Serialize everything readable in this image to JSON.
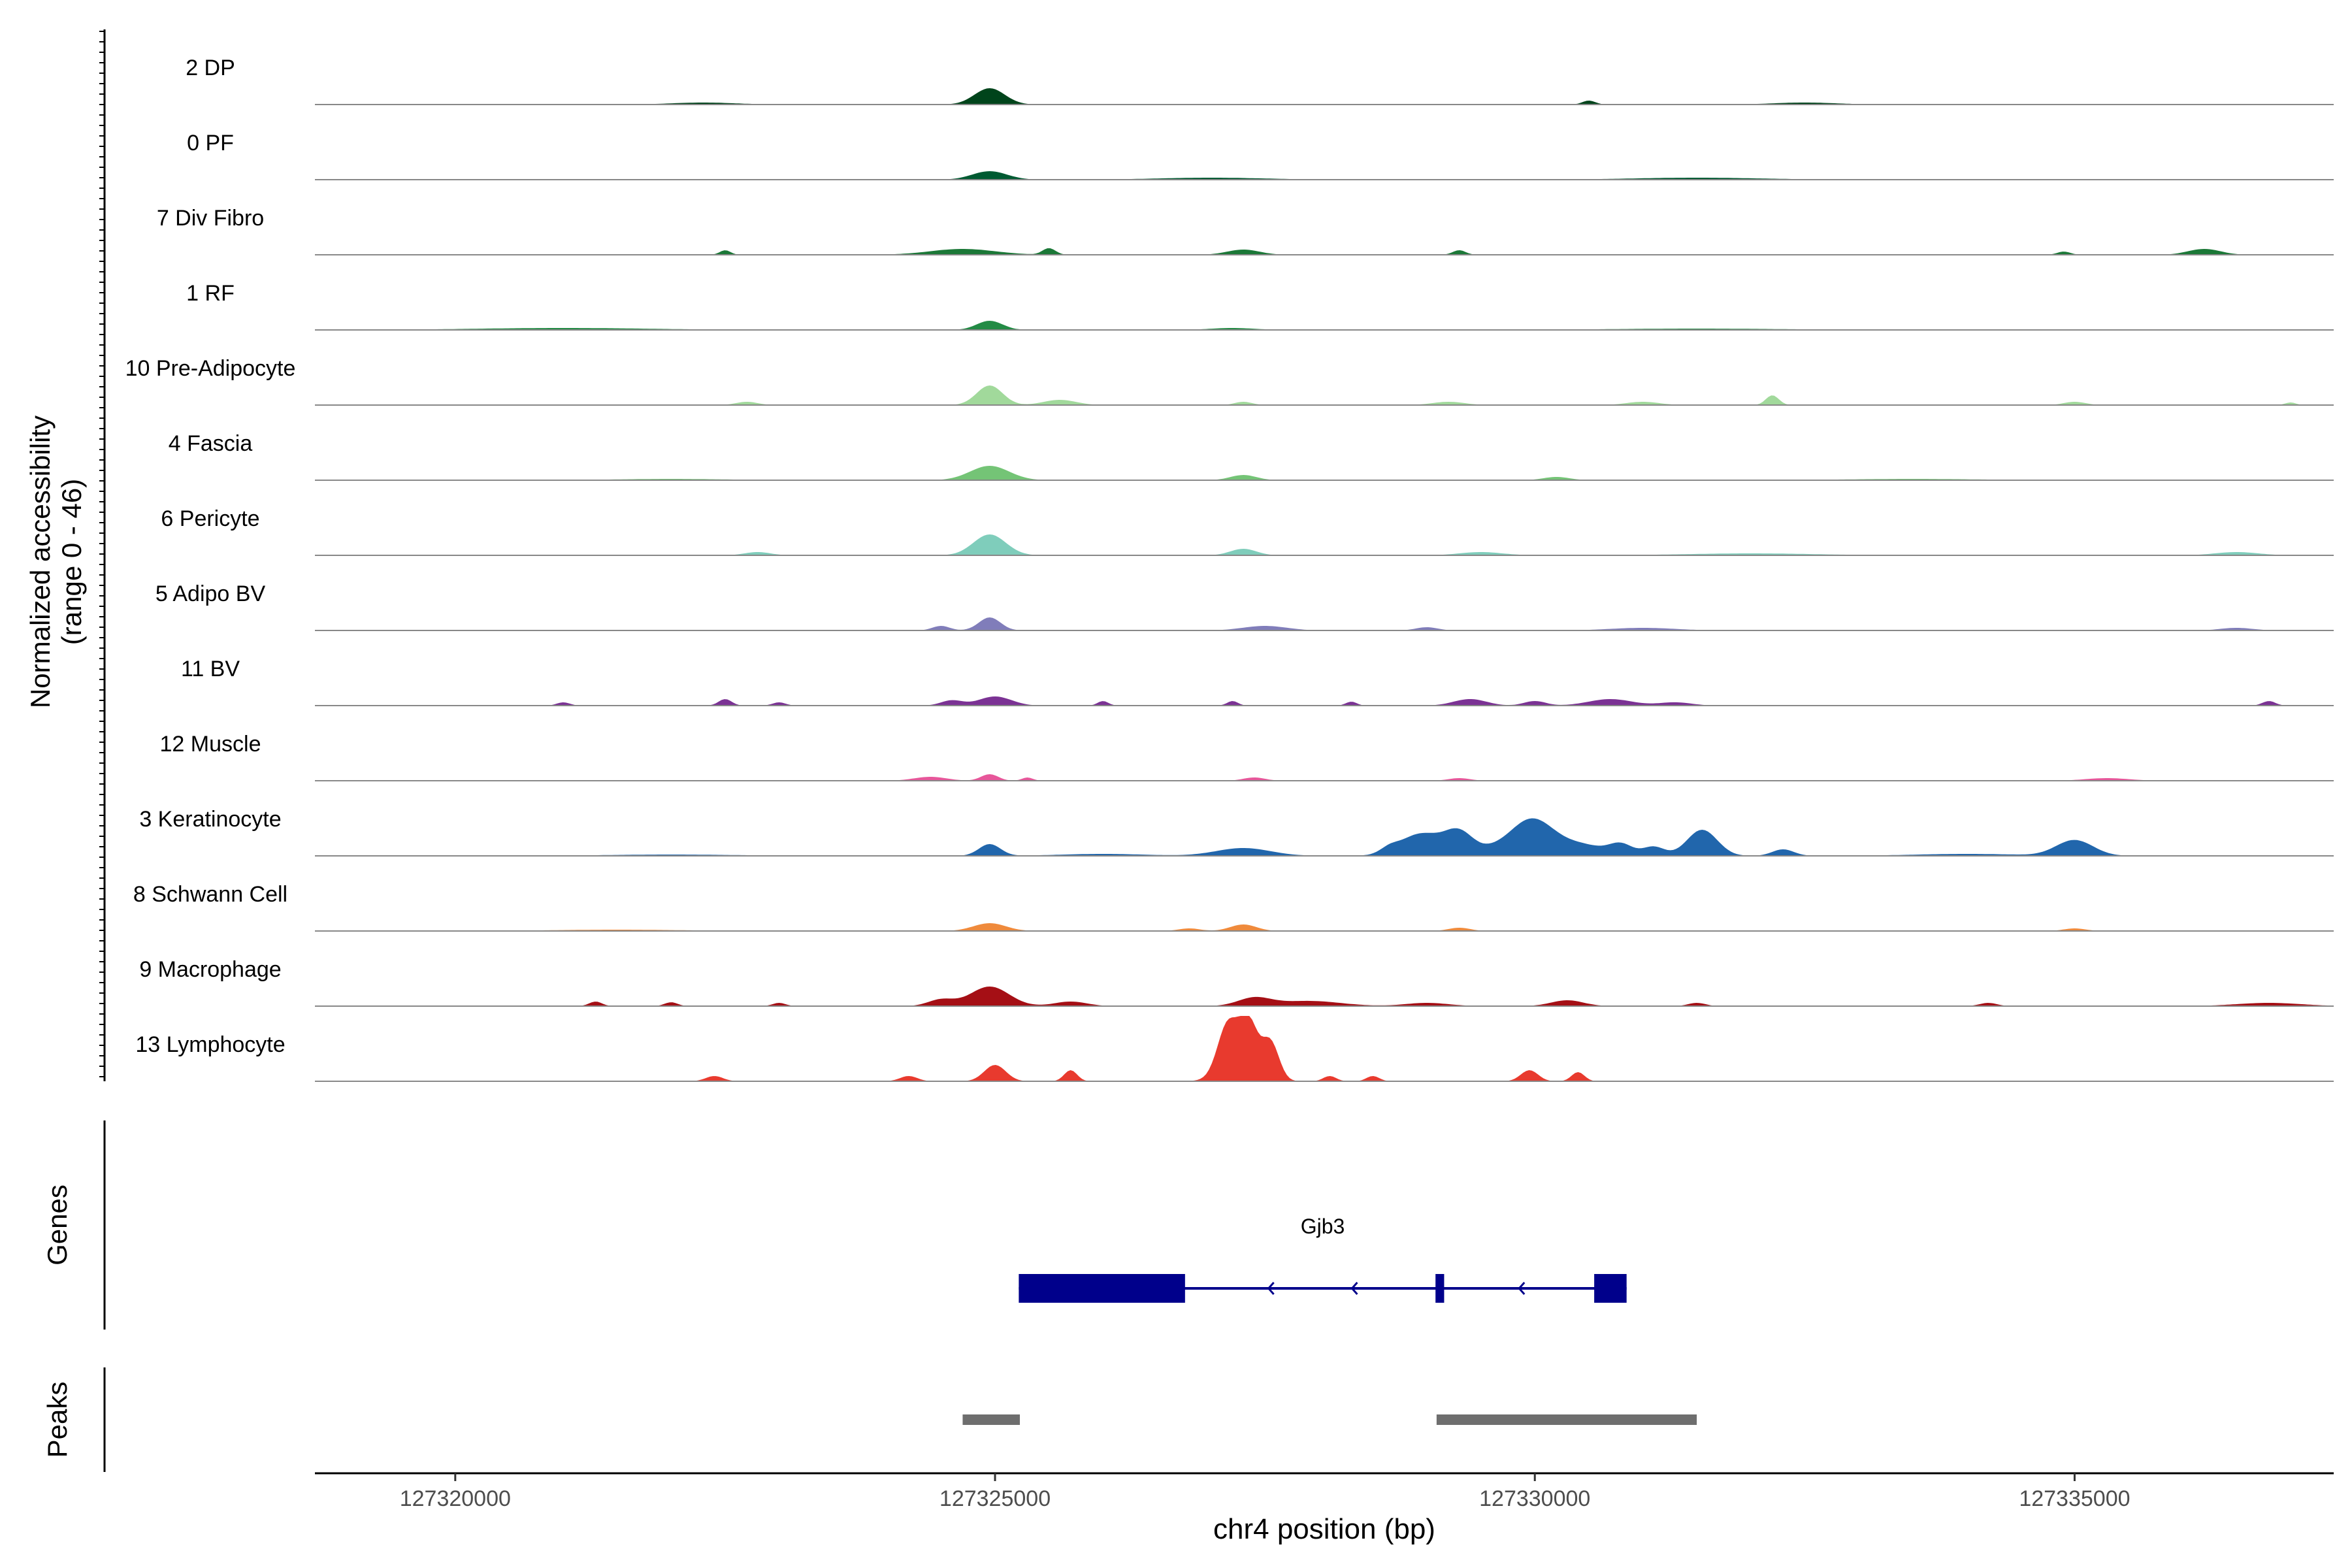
{
  "chart_data": {
    "type": "area",
    "ylabel_lines": [
      "Normalized accessibility",
      "(range 0 - 46)"
    ],
    "ylim": [
      0,
      46
    ],
    "xlabel": "chr4 position (bp)",
    "xlim": [
      127318700,
      127337400
    ],
    "xticks": [
      127320000,
      127325000,
      127330000,
      127335000
    ],
    "xtick_labels": [
      "127320000",
      "127325000",
      "127330000",
      "127335000"
    ],
    "grid": false,
    "tracks": [
      {
        "name": "2 DP",
        "color": "#00441b",
        "peaks": [
          [
            127324950,
            0.25,
            140
          ],
          [
            127330500,
            0.06,
            60
          ],
          [
            127322300,
            0.03,
            300
          ],
          [
            127332500,
            0.03,
            300
          ]
        ]
      },
      {
        "name": "0 PF",
        "color": "#005a32",
        "peaks": [
          [
            127324950,
            0.13,
            160
          ],
          [
            127327000,
            0.03,
            500
          ],
          [
            127331500,
            0.03,
            600
          ]
        ]
      },
      {
        "name": "7 Div Fibro",
        "color": "#1b7837",
        "peaks": [
          [
            127322500,
            0.07,
            50
          ],
          [
            127324700,
            0.09,
            300
          ],
          [
            127325500,
            0.1,
            60
          ],
          [
            127327300,
            0.08,
            150
          ],
          [
            127329300,
            0.07,
            60
          ],
          [
            127336200,
            0.09,
            150
          ],
          [
            127334900,
            0.05,
            60
          ]
        ]
      },
      {
        "name": "1 RF",
        "color": "#238b45",
        "peaks": [
          [
            127324950,
            0.14,
            120
          ],
          [
            127327200,
            0.03,
            200
          ],
          [
            127321000,
            0.03,
            800
          ],
          [
            127331500,
            0.02,
            800
          ]
        ]
      },
      {
        "name": "10 Pre-Adipocyte",
        "color": "#a1d99b",
        "peaks": [
          [
            127324950,
            0.3,
            120
          ],
          [
            127325600,
            0.08,
            150
          ],
          [
            127332200,
            0.15,
            60
          ],
          [
            127322700,
            0.05,
            100
          ],
          [
            127327300,
            0.05,
            80
          ],
          [
            127329200,
            0.05,
            150
          ],
          [
            127331000,
            0.05,
            150
          ],
          [
            127335000,
            0.05,
            100
          ],
          [
            127337000,
            0.04,
            50
          ]
        ]
      },
      {
        "name": "4 Fascia",
        "color": "#74c476",
        "peaks": [
          [
            127324950,
            0.22,
            180
          ],
          [
            127327300,
            0.08,
            120
          ],
          [
            127330200,
            0.05,
            120
          ],
          [
            127322000,
            0.02,
            500
          ],
          [
            127333500,
            0.02,
            600
          ]
        ]
      },
      {
        "name": "6 Pericyte",
        "color": "#7fcdbb",
        "peaks": [
          [
            127324950,
            0.32,
            150
          ],
          [
            127327300,
            0.1,
            120
          ],
          [
            127322800,
            0.05,
            120
          ],
          [
            127329500,
            0.05,
            200
          ],
          [
            127336500,
            0.05,
            200
          ],
          [
            127332000,
            0.03,
            600
          ]
        ]
      },
      {
        "name": "5 Adipo BV",
        "color": "#807dba",
        "peaks": [
          [
            127324950,
            0.2,
            100
          ],
          [
            127324500,
            0.07,
            80
          ],
          [
            127327500,
            0.07,
            200
          ],
          [
            127329000,
            0.05,
            100
          ],
          [
            127331000,
            0.04,
            300
          ],
          [
            127336500,
            0.04,
            150
          ]
        ]
      },
      {
        "name": "11 BV",
        "color": "#7b3294",
        "peaks": [
          [
            127325000,
            0.14,
            150
          ],
          [
            127324600,
            0.08,
            100
          ],
          [
            127322500,
            0.1,
            60
          ],
          [
            127326000,
            0.07,
            50
          ],
          [
            127321000,
            0.05,
            60
          ],
          [
            127323000,
            0.05,
            60
          ],
          [
            127327200,
            0.07,
            50
          ],
          [
            127328300,
            0.06,
            50
          ],
          [
            127329400,
            0.1,
            150
          ],
          [
            127330000,
            0.07,
            100
          ],
          [
            127330700,
            0.1,
            200
          ],
          [
            127331300,
            0.05,
            150
          ],
          [
            127336800,
            0.07,
            60
          ]
        ]
      },
      {
        "name": "12 Muscle",
        "color": "#e7569a",
        "peaks": [
          [
            127324950,
            0.1,
            80
          ],
          [
            127324400,
            0.06,
            150
          ],
          [
            127325300,
            0.05,
            50
          ],
          [
            127327400,
            0.05,
            100
          ],
          [
            127329300,
            0.04,
            100
          ],
          [
            127335300,
            0.04,
            200
          ]
        ]
      },
      {
        "name": "3 Keratinocyte",
        "color": "#2166ac",
        "peaks": [
          [
            127324950,
            0.18,
            100
          ],
          [
            127327300,
            0.12,
            250
          ],
          [
            127328650,
            0.07,
            80
          ],
          [
            127328950,
            0.34,
            200
          ],
          [
            127329300,
            0.33,
            130
          ],
          [
            127329600,
            0.08,
            150
          ],
          [
            127329950,
            0.5,
            190
          ],
          [
            127330200,
            0.14,
            200
          ],
          [
            127330500,
            0.12,
            180
          ],
          [
            127330800,
            0.17,
            110
          ],
          [
            127331100,
            0.14,
            100
          ],
          [
            127331550,
            0.4,
            140
          ],
          [
            127332300,
            0.1,
            100
          ],
          [
            127335000,
            0.24,
            170
          ],
          [
            127326000,
            0.03,
            400
          ],
          [
            127334000,
            0.03,
            500
          ],
          [
            127322000,
            0.02,
            600
          ]
        ]
      },
      {
        "name": "8 Schwann Cell",
        "color": "#ef8a3c",
        "peaks": [
          [
            127324950,
            0.12,
            150
          ],
          [
            127327300,
            0.1,
            120
          ],
          [
            127329300,
            0.05,
            100
          ],
          [
            127326800,
            0.04,
            100
          ],
          [
            127335000,
            0.04,
            100
          ],
          [
            127321500,
            0.02,
            600
          ]
        ]
      },
      {
        "name": "9 Macrophage",
        "color": "#a50f15",
        "peaks": [
          [
            127324950,
            0.3,
            180
          ],
          [
            127324500,
            0.1,
            120
          ],
          [
            127325700,
            0.07,
            150
          ],
          [
            127327400,
            0.12,
            150
          ],
          [
            127327900,
            0.08,
            300
          ],
          [
            127321300,
            0.07,
            60
          ],
          [
            127322000,
            0.06,
            60
          ],
          [
            127323000,
            0.05,
            60
          ],
          [
            127329000,
            0.05,
            200
          ],
          [
            127330300,
            0.09,
            150
          ],
          [
            127331500,
            0.05,
            80
          ],
          [
            127334200,
            0.05,
            80
          ],
          [
            127336800,
            0.05,
            300
          ]
        ]
      },
      {
        "name": "13 Lymphocyte",
        "color": "#e83a2e",
        "peaks": [
          [
            127327150,
            0.62,
            90
          ],
          [
            127327350,
            0.67,
            80
          ],
          [
            127327550,
            0.58,
            80
          ],
          [
            127327250,
            0.35,
            150
          ],
          [
            127325000,
            0.25,
            100
          ],
          [
            127325700,
            0.17,
            60
          ],
          [
            127329950,
            0.17,
            80
          ],
          [
            127330400,
            0.14,
            60
          ],
          [
            127322400,
            0.08,
            80
          ],
          [
            127324200,
            0.08,
            80
          ],
          [
            127328100,
            0.08,
            60
          ],
          [
            127328500,
            0.08,
            60
          ]
        ]
      }
    ],
    "genes_label": "Genes",
    "gene": {
      "name": "Gjb3",
      "color": "#00008b",
      "start": 127325220,
      "end": 127330850,
      "strand": "-",
      "exons": [
        [
          127325220,
          127326760
        ],
        [
          127329080,
          127329160
        ],
        [
          127330550,
          127330850
        ]
      ]
    },
    "peaks_label": "Peaks",
    "peak_regions": [
      [
        127324700,
        127325230
      ],
      [
        127329090,
        127331500
      ]
    ],
    "peak_color": "#6e6e6e"
  }
}
